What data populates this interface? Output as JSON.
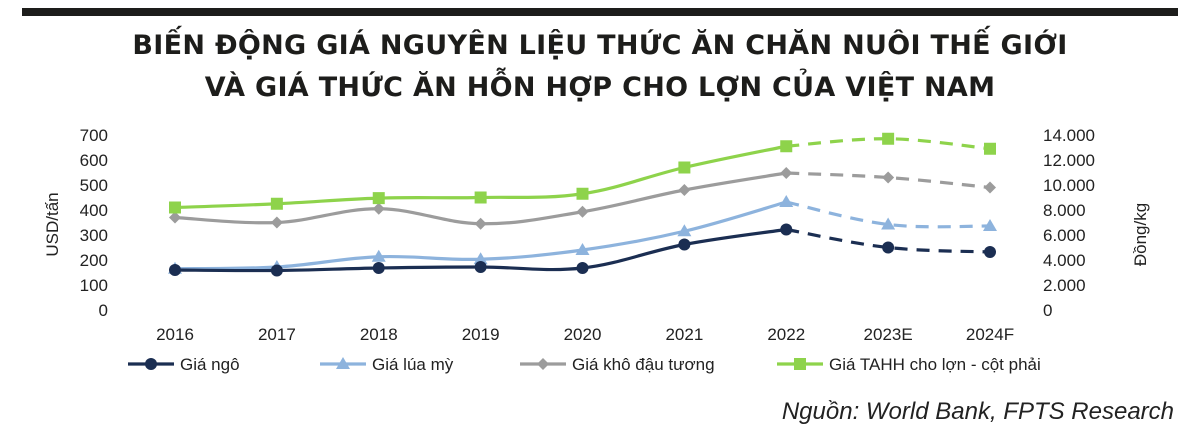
{
  "header": {
    "title_line1": "BIẾN ĐỘNG GIÁ NGUYÊN LIỆU THỨC ĂN CHĂN NUÔI THẾ GIỚI",
    "title_line2": "VÀ GIÁ THỨC ĂN HỖN HỢP CHO LỢN CỦA VIỆT NAM"
  },
  "source": "Nguồn: World Bank, FPTS Research",
  "colors": {
    "corn": "#1b2e52",
    "wheat": "#8db3dd",
    "soymeal": "#9c9c9c",
    "pigfeed": "#8ed34b",
    "bar": "#1d1d1b"
  },
  "chart_data": {
    "type": "line",
    "categories": [
      "2016",
      "2017",
      "2018",
      "2019",
      "2020",
      "2021",
      "2022",
      "2023E",
      "2024F"
    ],
    "forecast_start_index": 7,
    "ylabel": "USD/tấn",
    "y2label": "Đồng/kg",
    "ylim": [
      0,
      700
    ],
    "y2lim": [
      0,
      14000
    ],
    "yticks": [
      "0",
      "100",
      "200",
      "300",
      "400",
      "500",
      "600",
      "700"
    ],
    "y2ticks": [
      "0",
      "2.000",
      "4.000",
      "6.000",
      "8.000",
      "10.000",
      "12.000",
      "14.000"
    ],
    "grid": false,
    "legend_position": "bottom",
    "series": [
      {
        "name": "Giá ngô",
        "axis": "left",
        "marker": "circle",
        "color": "#1b2e52",
        "values": [
          160,
          158,
          168,
          172,
          168,
          262,
          322,
          250,
          232
        ]
      },
      {
        "name": "Giá lúa mỳ",
        "axis": "left",
        "marker": "triangle",
        "color": "#8db3dd",
        "values": [
          165,
          172,
          213,
          203,
          240,
          315,
          432,
          342,
          336
        ]
      },
      {
        "name": "Giá khô đậu tương",
        "axis": "left",
        "marker": "diamond",
        "color": "#9c9c9c",
        "values": [
          370,
          350,
          405,
          345,
          393,
          480,
          548,
          530,
          490
        ]
      },
      {
        "name": "Giá TAHH cho lợn - cột phải",
        "axis": "right",
        "marker": "square",
        "color": "#8ed34b",
        "values": [
          8200,
          8500,
          8950,
          9000,
          9300,
          11400,
          13100,
          13700,
          12900
        ]
      }
    ]
  }
}
